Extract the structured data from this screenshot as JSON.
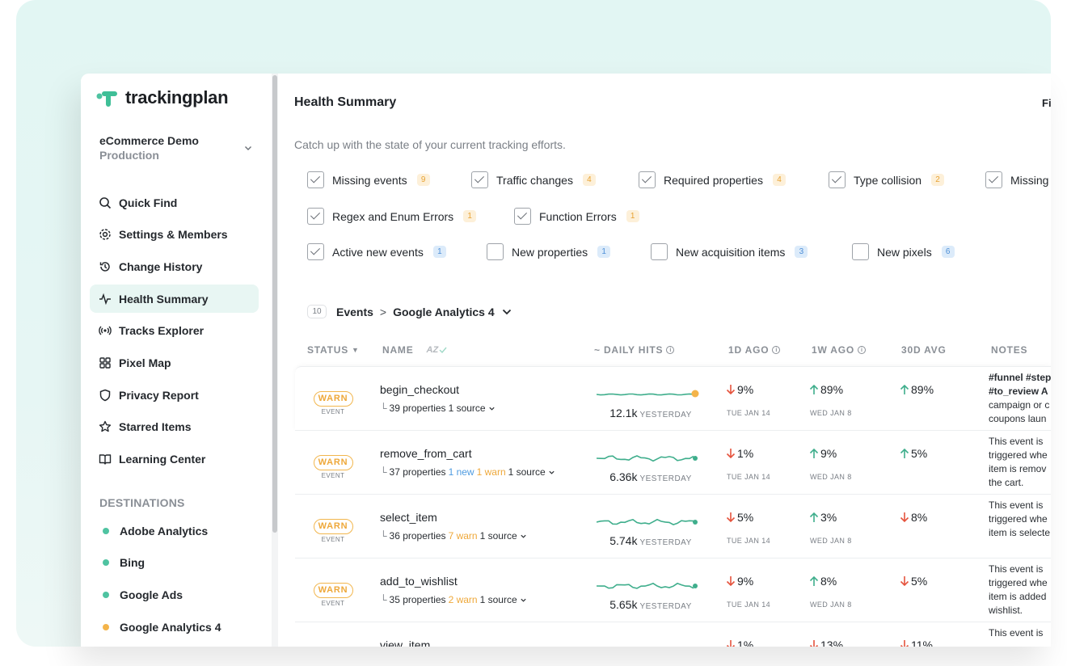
{
  "app": {
    "logo_text": "trackingplan",
    "colors": {
      "brand_green": "#3fbf97",
      "warn_orange": "#f2b64d",
      "up_green": "#3fae8c",
      "down_red": "#e5533d"
    }
  },
  "workspace": {
    "name": "eCommerce Demo",
    "environment": "Production"
  },
  "sidebar": {
    "nav": [
      {
        "label": "Quick Find",
        "icon": "search-icon"
      },
      {
        "label": "Settings & Members",
        "icon": "gear-icon"
      },
      {
        "label": "Change History",
        "icon": "history-icon"
      },
      {
        "label": "Health Summary",
        "icon": "pulse-icon",
        "active": true
      },
      {
        "label": "Tracks Explorer",
        "icon": "broadcast-icon"
      },
      {
        "label": "Pixel Map",
        "icon": "grid-icon"
      },
      {
        "label": "Privacy Report",
        "icon": "shield-icon"
      },
      {
        "label": "Starred Items",
        "icon": "star-icon"
      },
      {
        "label": "Learning Center",
        "icon": "book-icon"
      }
    ],
    "destinations_title": "DESTINATIONS",
    "destinations": [
      {
        "label": "Adobe Analytics",
        "color": "#4fc3a1"
      },
      {
        "label": "Bing",
        "color": "#4fc3a1"
      },
      {
        "label": "Google Ads",
        "color": "#4fc3a1"
      },
      {
        "label": "Google Analytics 4",
        "color": "#f4b44a"
      }
    ]
  },
  "main": {
    "title": "Health Summary",
    "filter_label": "Fi",
    "subtitle": "Catch up with the state of your current tracking efforts.",
    "filters": [
      {
        "label": "Missing events",
        "count": "9",
        "checked": true,
        "color": "orange"
      },
      {
        "label": "Traffic changes",
        "count": "4",
        "checked": true,
        "color": "orange"
      },
      {
        "label": "Required properties",
        "count": "4",
        "checked": true,
        "color": "orange"
      },
      {
        "label": "Type collision",
        "count": "2",
        "checked": true,
        "color": "orange"
      },
      {
        "label": "Missing",
        "count": "",
        "checked": true,
        "color": "orange"
      },
      {
        "label": "Regex and Enum Errors",
        "count": "1",
        "checked": true,
        "color": "orange"
      },
      {
        "label": "Function Errors",
        "count": "1",
        "checked": true,
        "color": "orange"
      },
      {
        "label": "Active new events",
        "count": "1",
        "checked": true,
        "color": "blue"
      },
      {
        "label": "New properties",
        "count": "1",
        "checked": false,
        "color": "blue"
      },
      {
        "label": "New acquisition items",
        "count": "3",
        "checked": false,
        "color": "blue"
      },
      {
        "label": "New pixels",
        "count": "6",
        "checked": false,
        "color": "blue"
      }
    ],
    "breadcrumb": {
      "count": "10",
      "section": "Events",
      "separator": ">",
      "destination": "Google Analytics 4"
    },
    "columns": {
      "status": "STATUS",
      "name": "NAME",
      "name_sort": "AZ",
      "daily_hits": "~ DAILY HITS",
      "ago_1d": "1D AGO",
      "ago_1w": "1W AGO",
      "avg_30d": "30D AVG",
      "notes": "NOTES"
    },
    "rows": [
      {
        "status": "WARN",
        "status_sub": "EVENT",
        "name": "begin_checkout",
        "props": "39 properties",
        "new": "",
        "warn": "",
        "source": "1 source",
        "hits": "12.1k",
        "hits_sub": "YESTERDAY",
        "d1": "9%",
        "d1_dir": "down",
        "d1_date": "TUE JAN 14",
        "w1": "89%",
        "w1_dir": "up",
        "w1_date": "WED JAN 8",
        "avg": "89%",
        "avg_dir": "up",
        "notes_tags": "#funnel #step #to_review",
        "notes_lines": [
          "#funnel #step",
          "#to_review A",
          "campaign or c",
          "coupons laun"
        ],
        "spark_flat": true,
        "end_dot_color": "#f4b44a"
      },
      {
        "status": "WARN",
        "status_sub": "EVENT",
        "name": "remove_from_cart",
        "props": "37 properties",
        "new": "1 new",
        "warn": "1 warn",
        "source": "1 source",
        "hits": "6.36k",
        "hits_sub": "YESTERDAY",
        "d1": "1%",
        "d1_dir": "down",
        "d1_date": "TUE JAN 14",
        "w1": "9%",
        "w1_dir": "up",
        "w1_date": "WED JAN 8",
        "avg": "5%",
        "avg_dir": "up",
        "notes_lines": [
          "This event is",
          "triggered whe",
          "item is remov",
          "the cart."
        ],
        "spark_flat": false,
        "end_dot_color": "#3fae8c"
      },
      {
        "status": "WARN",
        "status_sub": "EVENT",
        "name": "select_item",
        "props": "36 properties",
        "new": "",
        "warn": "7 warn",
        "source": "1 source",
        "hits": "5.74k",
        "hits_sub": "YESTERDAY",
        "d1": "5%",
        "d1_dir": "down",
        "d1_date": "TUE JAN 14",
        "w1": "3%",
        "w1_dir": "up",
        "w1_date": "WED JAN 8",
        "avg": "8%",
        "avg_dir": "down",
        "notes_lines": [
          "This event is",
          "triggered whe",
          "item is selecte"
        ],
        "spark_flat": false,
        "end_dot_color": "#3fae8c"
      },
      {
        "status": "WARN",
        "status_sub": "EVENT",
        "name": "add_to_wishlist",
        "props": "35 properties",
        "new": "",
        "warn": "2 warn",
        "source": "1 source",
        "hits": "5.65k",
        "hits_sub": "YESTERDAY",
        "d1": "9%",
        "d1_dir": "down",
        "d1_date": "TUE JAN 14",
        "w1": "8%",
        "w1_dir": "up",
        "w1_date": "WED JAN 8",
        "avg": "5%",
        "avg_dir": "down",
        "notes_lines": [
          "This event is",
          "triggered whe",
          "item is added",
          "wishlist."
        ],
        "spark_flat": false,
        "end_dot_color": "#3fae8c"
      },
      {
        "status": "WARN",
        "status_sub": "EVENT",
        "name": "view_item",
        "props": "",
        "new": "",
        "warn": "",
        "source": "",
        "hits": "",
        "hits_sub": "",
        "d1": "1%",
        "d1_dir": "down",
        "d1_date": "",
        "w1": "13%",
        "w1_dir": "down",
        "w1_date": "",
        "avg": "11%",
        "avg_dir": "down",
        "notes_lines": [
          "This event is"
        ],
        "spark_flat": false,
        "end_dot_color": "#3fae8c",
        "partial": true
      }
    ]
  }
}
